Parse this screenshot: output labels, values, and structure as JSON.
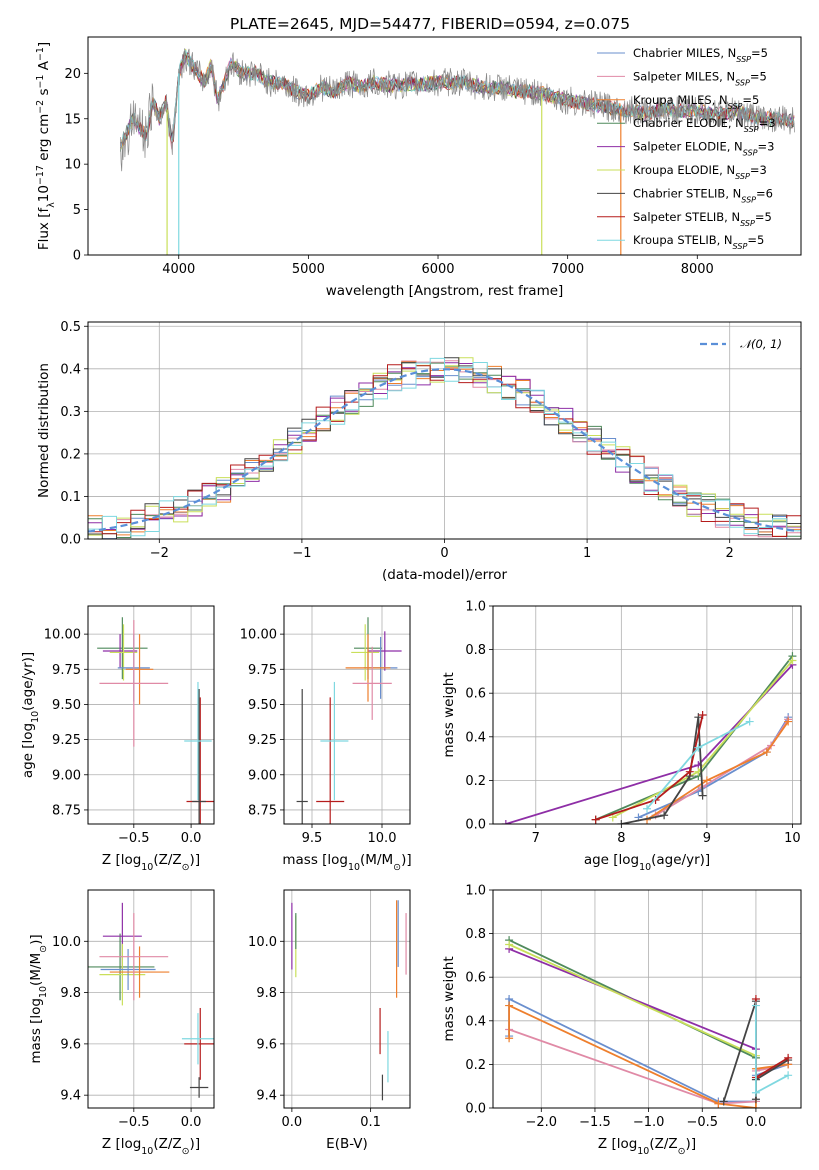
{
  "title": "PLATE=2645, MJD=54477, FIBERID=0594, z=0.075",
  "legend": [
    {
      "label": "Chabrier MILES, N",
      "sub": "SSP",
      "tail": "=5",
      "color": "#6a8fce"
    },
    {
      "label": "Salpeter MILES, N",
      "sub": "SSP",
      "tail": "=5",
      "color": "#e08aa6"
    },
    {
      "label": "Kroupa MILES, N",
      "sub": "SSP",
      "tail": "=5",
      "color": "#ee7f2d"
    },
    {
      "label": "Chabrier ELODIE, N",
      "sub": "SSP",
      "tail": "=3",
      "color": "#4f8a5c"
    },
    {
      "label": "Salpeter ELODIE, N",
      "sub": "SSP",
      "tail": "=3",
      "color": "#8e2ea6"
    },
    {
      "label": "Kroupa ELODIE, N",
      "sub": "SSP",
      "tail": "=3",
      "color": "#c9df5a"
    },
    {
      "label": "Chabrier STELIB, N",
      "sub": "SSP",
      "tail": "=6",
      "color": "#444444"
    },
    {
      "label": "Salpeter STELIB, N",
      "sub": "SSP",
      "tail": "=5",
      "color": "#b51c1c"
    },
    {
      "label": "Kroupa STELIB, N",
      "sub": "SSP",
      "tail": "=5",
      "color": "#7fd8e0"
    }
  ],
  "chart_data": [
    {
      "id": "spectrum",
      "type": "line",
      "xlabel": "wavelength [Angstrom, rest frame]",
      "ylabel_main": "Flux [f",
      "ylabel_sub": "λ",
      "ylabel_rest": "10",
      "ylabel_sup1": "−17",
      "ylabel_rest2": " erg cm",
      "ylabel_sup2": "−2",
      "ylabel_rest3": " s",
      "ylabel_sup3": "−1",
      "ylabel_rest4": " A",
      "ylabel_sup4": "−1",
      "ylabel_end": "]",
      "xlim": [
        3300,
        8800
      ],
      "ylim": [
        0,
        24
      ],
      "xticks": [
        4000,
        5000,
        6000,
        7000,
        8000
      ],
      "yticks": [
        0,
        5,
        10,
        15,
        20
      ],
      "grid": false,
      "legend_position": "top-right",
      "data_series": {
        "name": "data",
        "color": "#888888",
        "x": [
          3550,
          3600,
          3650,
          3700,
          3750,
          3800,
          3850,
          3900,
          3950,
          4000,
          4050,
          4100,
          4150,
          4200,
          4250,
          4300,
          4350,
          4400,
          4500,
          4600,
          4700,
          4800,
          4900,
          5000,
          5100,
          5200,
          5300,
          5400,
          5500,
          5600,
          5700,
          5800,
          5900,
          6000,
          6100,
          6200,
          6300,
          6400,
          6500,
          6600,
          6700,
          6800,
          6900,
          7000,
          7100,
          7200,
          7300,
          7400,
          7500,
          7600,
          7700,
          7800,
          7900,
          8000,
          8100,
          8200,
          8300,
          8400,
          8500,
          8600,
          8700,
          8750
        ],
        "y": [
          12,
          13.5,
          15,
          14,
          13,
          17,
          15,
          17,
          12,
          20,
          22,
          21,
          20,
          19,
          21,
          17,
          19,
          21,
          20,
          20,
          19,
          19,
          18,
          17.5,
          18.5,
          18,
          19,
          18.5,
          19,
          18.7,
          18.7,
          18.8,
          18.8,
          19,
          19,
          19,
          18.6,
          18.4,
          18.5,
          18,
          18,
          17.8,
          17.4,
          17,
          16.8,
          16.5,
          16.3,
          16,
          16,
          15.5,
          16,
          16,
          15.8,
          16,
          15.5,
          15.6,
          15.8,
          15.4,
          15,
          15,
          14.8,
          14.7
        ]
      },
      "drops": [
        {
          "x": 3910,
          "color": "#c9df5a"
        },
        {
          "x": 4000,
          "color": "#7fd8e0"
        },
        {
          "x": 6800,
          "color": "#c9df5a"
        },
        {
          "x": 7410,
          "color": "#ee7f2d"
        }
      ]
    },
    {
      "id": "residuals",
      "type": "line",
      "xlabel": "(data-model)/error",
      "ylabel": "Normed distribution",
      "xlim": [
        -2.5,
        2.5
      ],
      "ylim": [
        0,
        0.51
      ],
      "xticks": [
        -2,
        -1,
        0,
        1,
        2
      ],
      "yticks": [
        0.0,
        0.1,
        0.2,
        0.3,
        0.4,
        0.5
      ],
      "grid": true,
      "legend": "𝒩(0, 1)",
      "legend_position": "top-right",
      "gaussian": {
        "mean": 0,
        "sigma": 1,
        "color": "#5a8fd8"
      }
    },
    {
      "id": "age-vs-Z",
      "type": "scatter",
      "xlabel_pre": "Z [log",
      "xlabel_sub": "10",
      "xlabel_post": "(Z/Z",
      "xlabel_sub2": "⊙",
      "xlabel_end": ")]",
      "ylabel_pre": "age  [log",
      "ylabel_sub": "10",
      "ylabel_post": "(age/yr)]",
      "xlim": [
        -0.9,
        0.2
      ],
      "ylim": [
        8.65,
        10.2
      ],
      "xticks": [
        -0.5,
        0.0
      ],
      "yticks": [
        8.75,
        9.0,
        9.25,
        9.5,
        9.75,
        10.0
      ],
      "xticklabels": [
        "−0.5",
        "0.0"
      ],
      "yticklabels": [
        "8.75",
        "9.00",
        "9.25",
        "9.50",
        "9.75",
        "10.00"
      ],
      "grid": true,
      "points": [
        {
          "x": -0.6,
          "y": 9.9,
          "xerr": 0.22,
          "yerr": 0.22,
          "color": "#4f8a5c"
        },
        {
          "x": -0.62,
          "y": 9.88,
          "xerr": 0.15,
          "yerr": 0.12,
          "color": "#8e2ea6"
        },
        {
          "x": -0.59,
          "y": 9.87,
          "xerr": 0.12,
          "yerr": 0.2,
          "color": "#c9df5a"
        },
        {
          "x": -0.5,
          "y": 9.76,
          "xerr": 0.14,
          "yerr": 0.24,
          "color": "#6a8fce"
        },
        {
          "x": -0.45,
          "y": 9.75,
          "xerr": 0.12,
          "yerr": 0.25,
          "color": "#ee7f2d"
        },
        {
          "x": -0.5,
          "y": 9.65,
          "xerr": 0.3,
          "yerr": 0.45,
          "color": "#e08aa6"
        },
        {
          "x": 0.08,
          "y": 8.81,
          "xerr": 0.12,
          "yerr": 0.74,
          "color": "#b51c1c"
        },
        {
          "x": 0.07,
          "y": 8.81,
          "xerr": 0.06,
          "yerr": 0.8,
          "color": "#444444"
        },
        {
          "x": 0.06,
          "y": 9.24,
          "xerr": 0.12,
          "yerr": 0.42,
          "color": "#7fd8e0"
        }
      ]
    },
    {
      "id": "age-vs-mass",
      "type": "scatter",
      "xlabel_pre": "mass [log",
      "xlabel_sub": "10",
      "xlabel_post": "(M/M",
      "xlabel_sub2": "⊙",
      "xlabel_end": ")]",
      "xlim": [
        9.3,
        10.2
      ],
      "ylim": [
        8.65,
        10.2
      ],
      "xticks": [
        9.5,
        10.0
      ],
      "xticklabels": [
        "9.5",
        "10.0"
      ],
      "yticks": [
        8.75,
        9.0,
        9.25,
        9.5,
        9.75,
        10.0
      ],
      "yticklabels": [
        "8.75",
        "9.00",
        "9.25",
        "9.50",
        "9.75",
        "10.00"
      ],
      "grid": true,
      "points": [
        {
          "x": 9.9,
          "y": 9.9,
          "xerr": 0.1,
          "yerr": 0.22,
          "color": "#4f8a5c"
        },
        {
          "x": 10.02,
          "y": 9.88,
          "xerr": 0.12,
          "yerr": 0.14,
          "color": "#8e2ea6"
        },
        {
          "x": 9.88,
          "y": 9.87,
          "xerr": 0.1,
          "yerr": 0.2,
          "color": "#c9df5a"
        },
        {
          "x": 9.99,
          "y": 9.76,
          "xerr": 0.12,
          "yerr": 0.22,
          "color": "#6a8fce"
        },
        {
          "x": 9.9,
          "y": 9.76,
          "xerr": 0.16,
          "yerr": 0.24,
          "color": "#ee7f2d"
        },
        {
          "x": 9.93,
          "y": 9.65,
          "xerr": 0.14,
          "yerr": 0.26,
          "color": "#e08aa6"
        },
        {
          "x": 9.63,
          "y": 8.81,
          "xerr": 0.1,
          "yerr": 0.74,
          "color": "#b51c1c"
        },
        {
          "x": 9.43,
          "y": 8.81,
          "xerr": 0.04,
          "yerr": 0.8,
          "color": "#444444"
        },
        {
          "x": 9.66,
          "y": 9.24,
          "xerr": 0.1,
          "yerr": 0.42,
          "color": "#7fd8e0"
        }
      ]
    },
    {
      "id": "weight-vs-age",
      "type": "line",
      "xlabel_pre": "age  [log",
      "xlabel_sub": "10",
      "xlabel_post": "(age/yr)]",
      "ylabel": "mass weight",
      "xlim": [
        6.5,
        10.1
      ],
      "ylim": [
        0,
        1
      ],
      "xticks": [
        7,
        8,
        9,
        10
      ],
      "yticks": [
        0.0,
        0.2,
        0.4,
        0.6,
        0.8,
        1.0
      ],
      "grid": true,
      "series": [
        {
          "color": "#4f8a5c",
          "x": [
            7.7,
            8.9,
            10.0
          ],
          "y": [
            0.02,
            0.22,
            0.77
          ]
        },
        {
          "color": "#8e2ea6",
          "x": [
            6.65,
            8.9,
            10.0
          ],
          "y": [
            0.0,
            0.27,
            0.73
          ]
        },
        {
          "color": "#c9df5a",
          "x": [
            7.9,
            8.9,
            10.0
          ],
          "y": [
            0.03,
            0.24,
            0.75
          ]
        },
        {
          "color": "#6a8fce",
          "x": [
            8.2,
            8.9,
            9.7,
            9.95
          ],
          "y": [
            0.03,
            0.15,
            0.33,
            0.49
          ]
        },
        {
          "color": "#e08aa6",
          "x": [
            8.4,
            8.95,
            9.75,
            9.95
          ],
          "y": [
            0.04,
            0.17,
            0.36,
            0.48
          ]
        },
        {
          "color": "#ee7f2d",
          "x": [
            8.3,
            9.0,
            9.7,
            9.95
          ],
          "y": [
            0.02,
            0.2,
            0.33,
            0.47
          ]
        },
        {
          "color": "#444444",
          "x": [
            8.0,
            8.5,
            8.8,
            8.9,
            8.95
          ],
          "y": [
            0.0,
            0.04,
            0.22,
            0.49,
            0.13
          ]
        },
        {
          "color": "#b51c1c",
          "x": [
            7.7,
            8.4,
            8.8,
            8.95
          ],
          "y": [
            0.02,
            0.11,
            0.24,
            0.5
          ]
        },
        {
          "color": "#7fd8e0",
          "x": [
            8.3,
            8.9,
            9.5
          ],
          "y": [
            0.07,
            0.35,
            0.47
          ]
        }
      ]
    },
    {
      "id": "mass-vs-Z",
      "type": "scatter",
      "xlabel_pre": "Z [log",
      "xlabel_sub": "10",
      "xlabel_post": "(Z/Z",
      "xlabel_sub2": "⊙",
      "xlabel_end": ")]",
      "ylabel_pre": "mass [log",
      "ylabel_sub": "10",
      "ylabel_post": "(M/M",
      "ylabel_sub2": "⊙",
      "ylabel_end": ")]",
      "xlim": [
        -0.9,
        0.2
      ],
      "ylim": [
        9.35,
        10.2
      ],
      "xticks": [
        -0.5,
        0.0
      ],
      "xticklabels": [
        "−0.5",
        "0.0"
      ],
      "yticks": [
        9.4,
        9.6,
        9.8,
        10.0
      ],
      "yticklabels": [
        "9.4",
        "9.6",
        "9.8",
        "10.0"
      ],
      "grid": true,
      "points": [
        {
          "x": -0.62,
          "y": 9.9,
          "xerr": 0.3,
          "yerr": 0.13,
          "color": "#4f8a5c"
        },
        {
          "x": -0.6,
          "y": 10.02,
          "xerr": 0.17,
          "yerr": 0.13,
          "color": "#8e2ea6"
        },
        {
          "x": -0.6,
          "y": 9.87,
          "xerr": 0.2,
          "yerr": 0.12,
          "color": "#c9df5a"
        },
        {
          "x": -0.55,
          "y": 9.89,
          "xerr": 0.24,
          "yerr": 0.08,
          "color": "#6a8fce"
        },
        {
          "x": -0.45,
          "y": 9.88,
          "xerr": 0.26,
          "yerr": 0.1,
          "color": "#ee7f2d"
        },
        {
          "x": -0.5,
          "y": 9.94,
          "xerr": 0.3,
          "yerr": 0.17,
          "color": "#e08aa6"
        },
        {
          "x": 0.08,
          "y": 9.6,
          "xerr": 0.14,
          "yerr": 0.14,
          "color": "#b51c1c"
        },
        {
          "x": 0.07,
          "y": 9.43,
          "xerr": 0.08,
          "yerr": 0.04,
          "color": "#444444"
        },
        {
          "x": 0.06,
          "y": 9.62,
          "xerr": 0.14,
          "yerr": 0.1,
          "color": "#7fd8e0"
        }
      ]
    },
    {
      "id": "mass-vs-ebv",
      "type": "scatter",
      "xlabel": "E(B-V)",
      "xlim": [
        -0.01,
        0.15
      ],
      "ylim": [
        9.35,
        10.2
      ],
      "xticks": [
        0.0,
        0.1
      ],
      "xticklabels": [
        "0.0",
        "0.1"
      ],
      "yticks": [
        9.4,
        9.6,
        9.8,
        10.0
      ],
      "yticklabels": [
        "9.4",
        "9.6",
        "9.8",
        "10.0"
      ],
      "grid": true,
      "points": [
        {
          "x": 0.0,
          "y": 10.02,
          "xerr": 0.0,
          "yerr": 0.13,
          "color": "#8e2ea6"
        },
        {
          "x": 0.005,
          "y": 9.98,
          "xerr": 0.0,
          "yerr": 0.12,
          "color": "#c9df5a"
        },
        {
          "x": 0.005,
          "y": 10.04,
          "xerr": 0.0,
          "yerr": 0.07,
          "color": "#4f8a5c"
        },
        {
          "x": 0.145,
          "y": 9.99,
          "xerr": 0.0,
          "yerr": 0.12,
          "color": "#e08aa6"
        },
        {
          "x": 0.133,
          "y": 9.97,
          "xerr": 0.0,
          "yerr": 0.19,
          "color": "#ee7f2d"
        },
        {
          "x": 0.135,
          "y": 10.03,
          "xerr": 0.0,
          "yerr": 0.13,
          "color": "#6a8fce"
        },
        {
          "x": 0.112,
          "y": 9.65,
          "xerr": 0.0,
          "yerr": 0.09,
          "color": "#b51c1c"
        },
        {
          "x": 0.115,
          "y": 9.43,
          "xerr": 0.0,
          "yerr": 0.05,
          "color": "#444444"
        },
        {
          "x": 0.122,
          "y": 9.55,
          "xerr": 0.0,
          "yerr": 0.1,
          "color": "#7fd8e0"
        }
      ]
    },
    {
      "id": "weight-vs-Z",
      "type": "line",
      "xlabel_pre": "Z [log",
      "xlabel_sub": "10",
      "xlabel_post": "(Z/Z",
      "xlabel_sub2": "⊙",
      "xlabel_end": ")]",
      "ylabel": "mass weight",
      "xlim": [
        -2.45,
        0.42
      ],
      "ylim": [
        0,
        1
      ],
      "xticks": [
        -2.0,
        -1.5,
        -1.0,
        -0.5,
        0.0
      ],
      "xticklabels": [
        "−2.0",
        "−1.5",
        "−1.0",
        "−0.5",
        "0.0"
      ],
      "yticks": [
        0.0,
        0.2,
        0.4,
        0.6,
        0.8,
        1.0
      ],
      "grid": true,
      "series": [
        {
          "color": "#4f8a5c",
          "x": [
            -2.3,
            0.0
          ],
          "y": [
            0.77,
            0.23
          ]
        },
        {
          "color": "#8e2ea6",
          "x": [
            -2.3,
            0.0
          ],
          "y": [
            0.73,
            0.27
          ]
        },
        {
          "color": "#c9df5a",
          "x": [
            -2.3,
            0.0
          ],
          "y": [
            0.75,
            0.24
          ]
        },
        {
          "color": "#6a8fce",
          "x": [
            -2.3,
            -2.3,
            -0.35,
            0.0,
            0.0,
            0.3
          ],
          "y": [
            0.33,
            0.5,
            0.03,
            0.03,
            0.15,
            0.2
          ]
        },
        {
          "color": "#e08aa6",
          "x": [
            -2.3,
            -0.35,
            0.0,
            0.0,
            0.3
          ],
          "y": [
            0.36,
            0.02,
            0.03,
            0.17,
            0.2
          ]
        },
        {
          "color": "#ee7f2d",
          "x": [
            -2.3,
            -2.3,
            -0.35,
            0.0,
            0.0,
            0.3
          ],
          "y": [
            0.32,
            0.47,
            0.02,
            0.0,
            0.18,
            0.2
          ]
        },
        {
          "color": "#444444",
          "x": [
            -0.3,
            0.0,
            0.0,
            0.0,
            0.3
          ],
          "y": [
            0.03,
            0.49,
            0.04,
            0.13,
            0.22
          ]
        },
        {
          "color": "#b51c1c",
          "x": [
            0.0,
            0.0,
            0.3
          ],
          "y": [
            0.5,
            0.14,
            0.23
          ]
        },
        {
          "color": "#7fd8e0",
          "x": [
            0.0,
            0.0,
            0.3
          ],
          "y": [
            0.47,
            0.07,
            0.15
          ]
        }
      ]
    }
  ]
}
